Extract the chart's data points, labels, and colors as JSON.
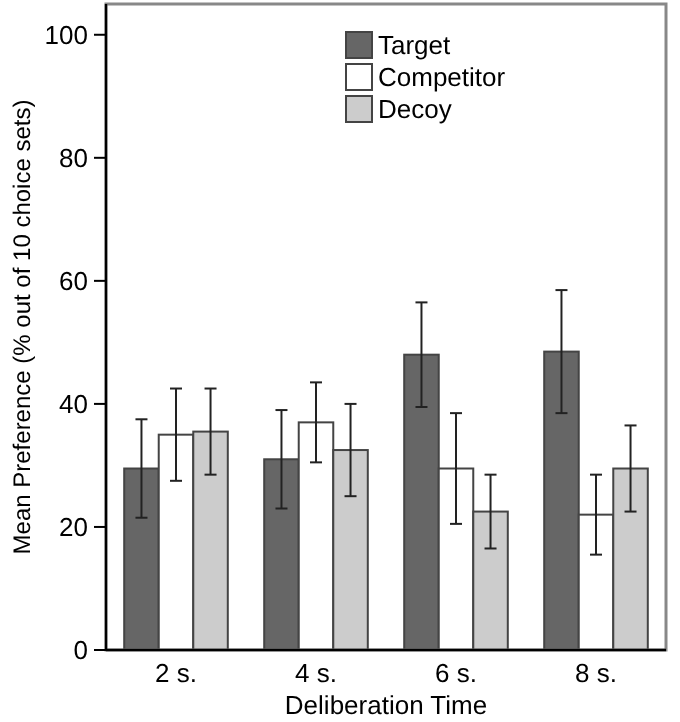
{
  "chart_data": {
    "type": "bar",
    "xlabel": "Deliberation Time",
    "ylabel": "Mean Preference (% out of 10 choice sets)",
    "categories": [
      "2 s.",
      "4 s.",
      "6 s.",
      "8 s."
    ],
    "series": [
      {
        "name": "Target",
        "color": "#666666",
        "values": [
          29.5,
          31,
          48,
          48.5
        ],
        "errors": [
          8,
          8,
          8.5,
          10
        ]
      },
      {
        "name": "Competitor",
        "color": "#ffffff",
        "values": [
          35,
          37,
          29.5,
          22
        ],
        "errors": [
          7.5,
          6.5,
          9,
          6.5
        ]
      },
      {
        "name": "Decoy",
        "color": "#cccccc",
        "values": [
          35.5,
          32.5,
          22.5,
          29.5
        ],
        "errors": [
          7,
          7.5,
          6,
          7
        ]
      }
    ],
    "ylim": [
      0,
      105
    ],
    "yticks": [
      0,
      20,
      40,
      60,
      80,
      100
    ],
    "grid": false,
    "legend": "top right"
  }
}
